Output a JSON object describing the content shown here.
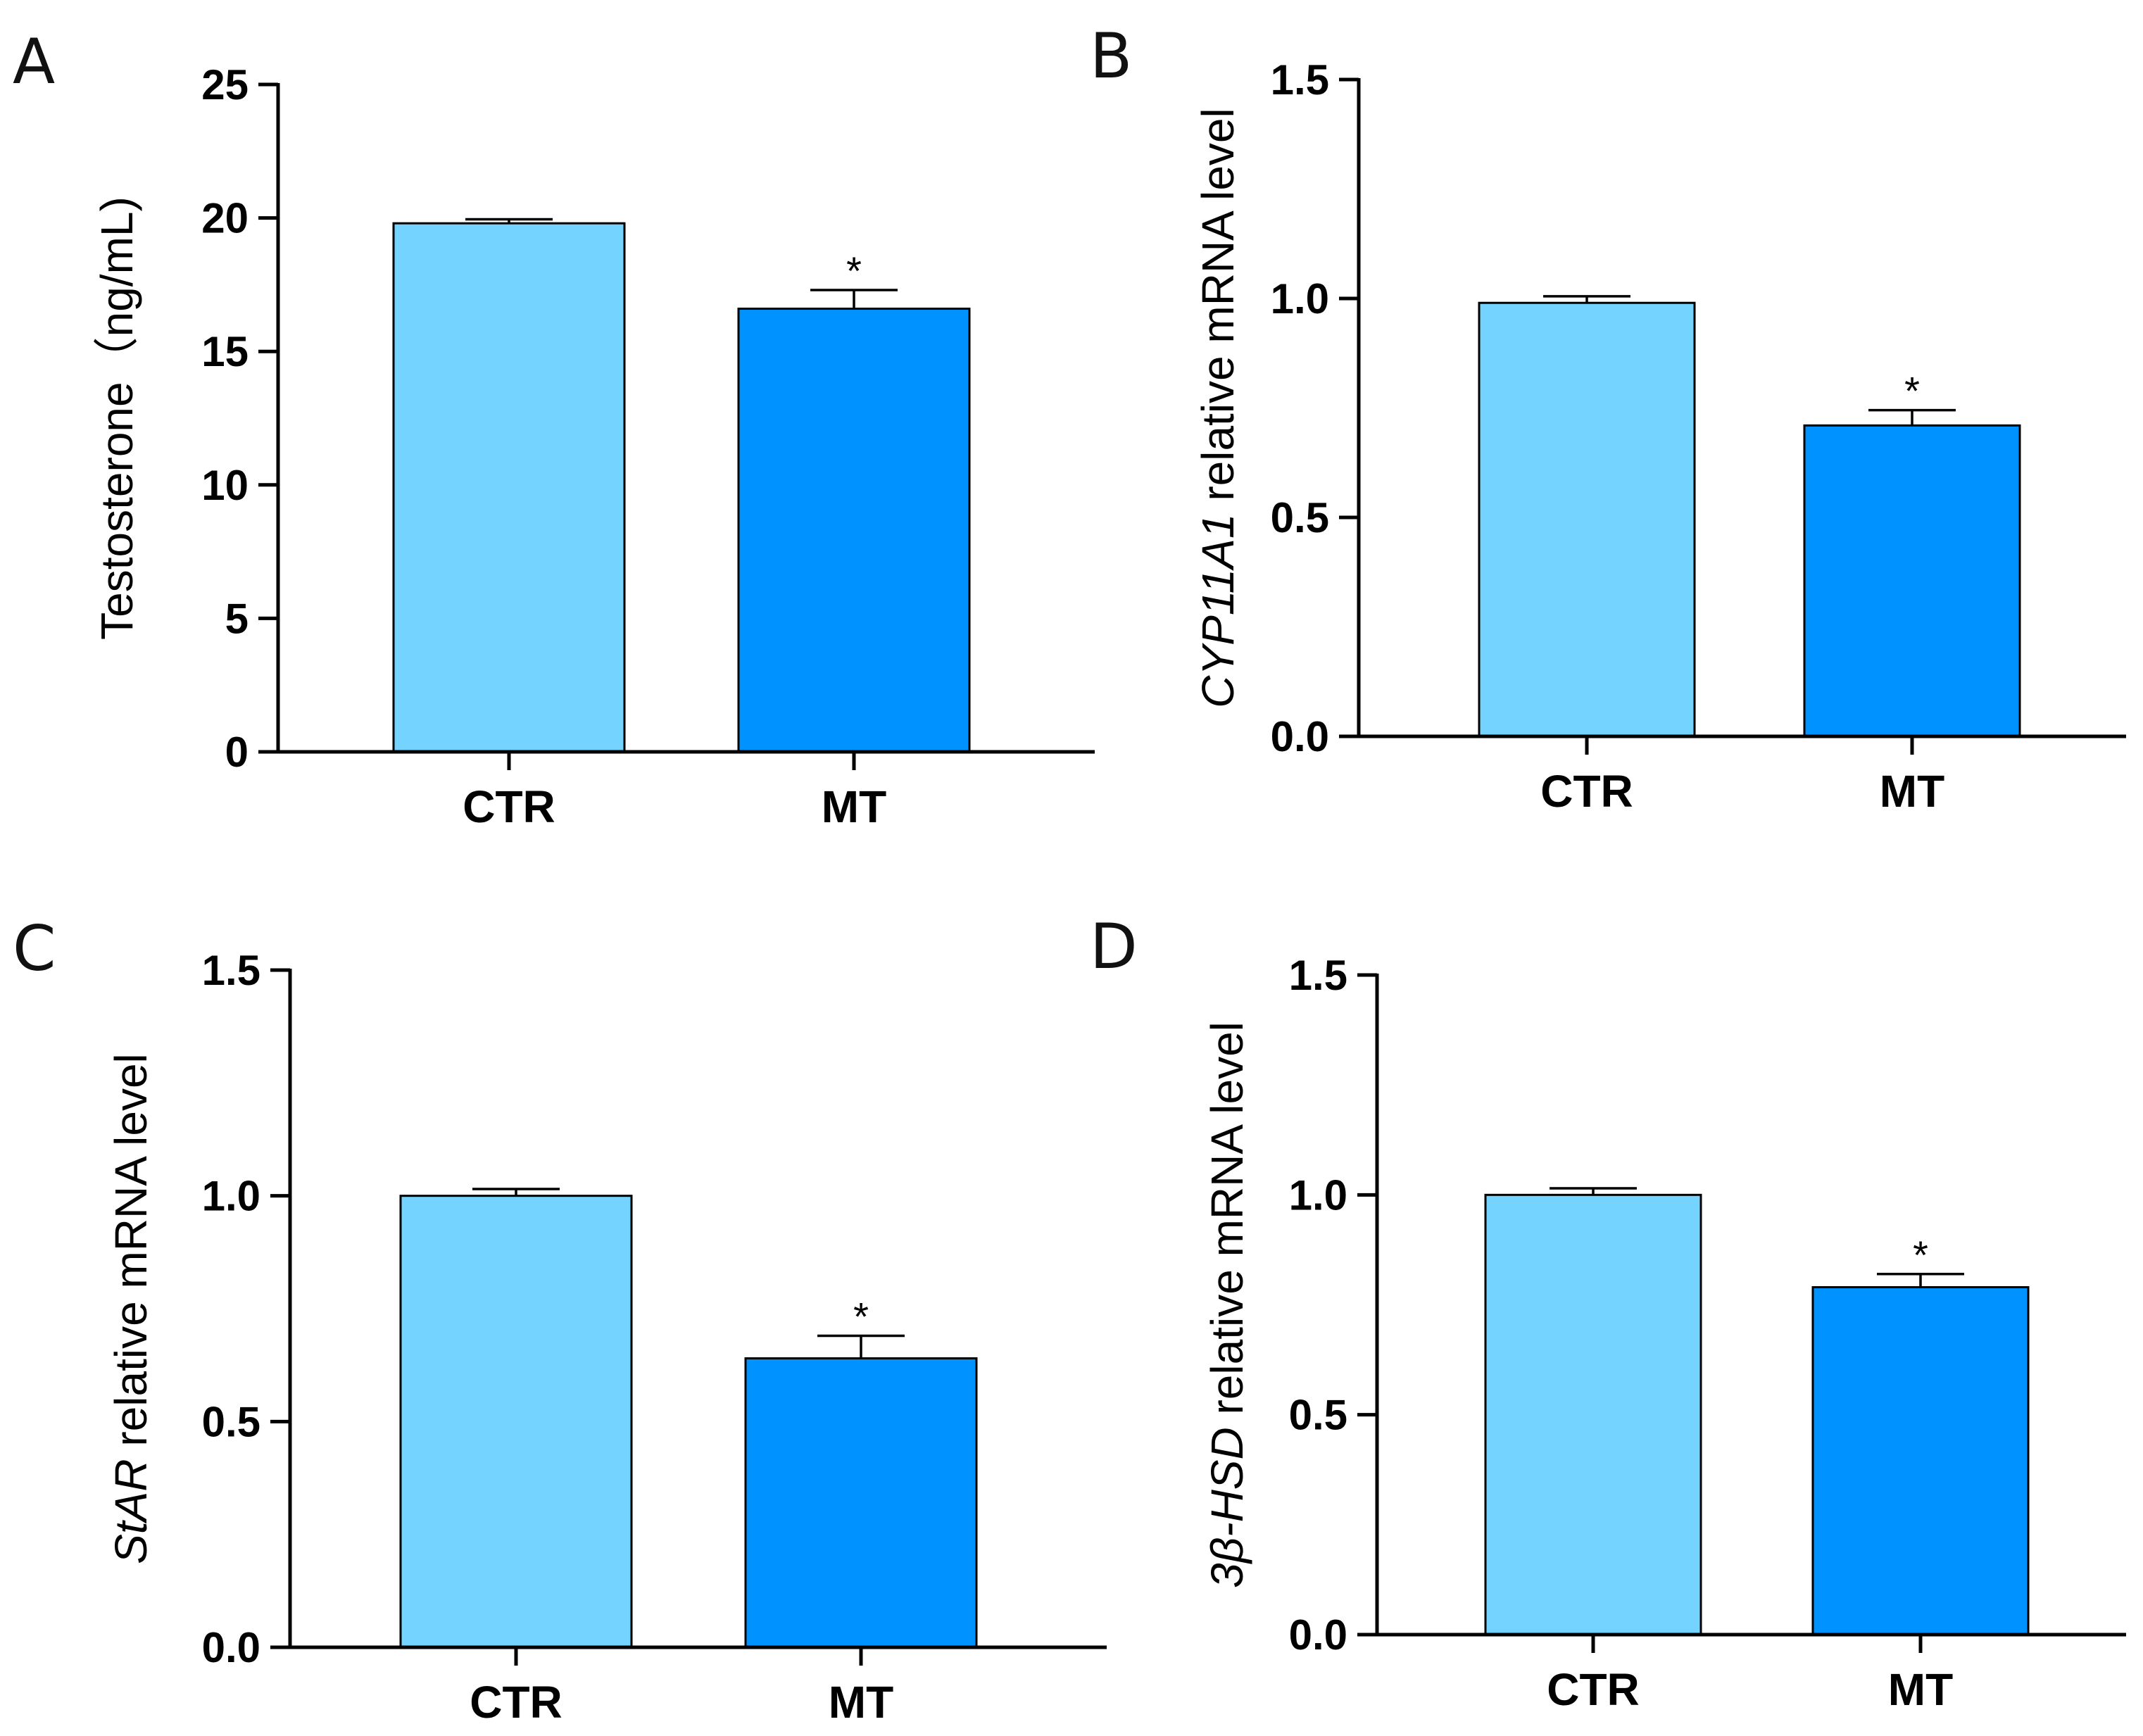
{
  "chart_data": [
    {
      "panel": "A",
      "type": "bar",
      "categories": [
        "CTR",
        "MT"
      ],
      "values": [
        19.8,
        16.6
      ],
      "errors": [
        0.15,
        0.7
      ],
      "significance": [
        "",
        "*"
      ],
      "ylabel": "Testosterone（ng/mL)",
      "ylabel_italic": "",
      "ylim": [
        0,
        25
      ],
      "yticks": [
        0,
        5,
        10,
        15,
        20,
        25
      ],
      "ytick_labels": [
        "0",
        "5",
        "10",
        "15",
        "20",
        "25"
      ],
      "colors": [
        "#75d3ff",
        "#0093ff"
      ]
    },
    {
      "panel": "B",
      "type": "bar",
      "categories": [
        "CTR",
        "MT"
      ],
      "values": [
        0.99,
        0.71
      ],
      "errors": [
        0.015,
        0.035
      ],
      "significance": [
        "",
        "*"
      ],
      "ylabel": " relative mRNA level",
      "ylabel_italic": "CYP11A1",
      "ylim": [
        0,
        1.5
      ],
      "yticks": [
        0,
        0.5,
        1.0,
        1.5
      ],
      "ytick_labels": [
        "0.0",
        "0.5",
        "1.0",
        "1.5"
      ],
      "colors": [
        "#75d3ff",
        "#0093ff"
      ]
    },
    {
      "panel": "C",
      "type": "bar",
      "categories": [
        "CTR",
        "MT"
      ],
      "values": [
        1.0,
        0.64
      ],
      "errors": [
        0.015,
        0.05
      ],
      "significance": [
        "",
        "*"
      ],
      "ylabel": " relative mRNA level",
      "ylabel_italic": "StAR",
      "ylim": [
        0,
        1.5
      ],
      "yticks": [
        0,
        0.5,
        1.0,
        1.5
      ],
      "ytick_labels": [
        "0.0",
        "0.5",
        "1.0",
        "1.5"
      ],
      "colors": [
        "#75d3ff",
        "#0093ff"
      ]
    },
    {
      "panel": "D",
      "type": "bar",
      "categories": [
        "CTR",
        "MT"
      ],
      "values": [
        1.0,
        0.79
      ],
      "errors": [
        0.015,
        0.03
      ],
      "significance": [
        "",
        "*"
      ],
      "ylabel": " relative mRNA level",
      "ylabel_italic": "3β-HSD",
      "ylim": [
        0,
        1.5
      ],
      "yticks": [
        0,
        0.5,
        1.0,
        1.5
      ],
      "ytick_labels": [
        "0.0",
        "0.5",
        "1.0",
        "1.5"
      ],
      "colors": [
        "#75d3ff",
        "#0093ff"
      ]
    }
  ]
}
